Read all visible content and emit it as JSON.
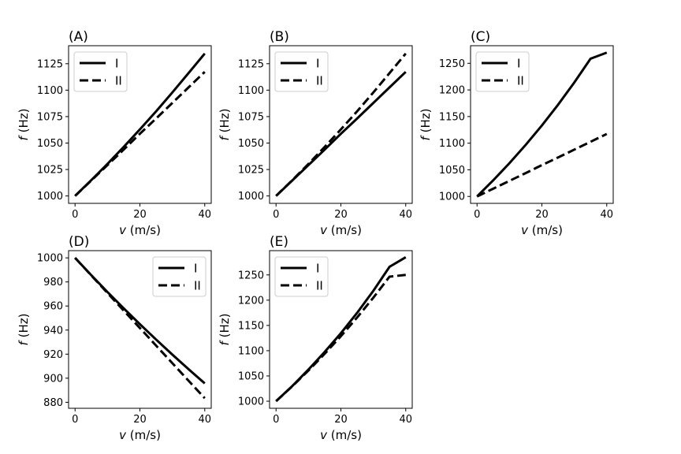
{
  "chart_data": [
    {
      "type": "line",
      "panel_label": "(A)",
      "xlabel_var": "v",
      "xlabel_unit": " (m/s)",
      "ylabel_var": "f",
      "ylabel_unit": " (Hz)",
      "xlim": [
        -2,
        42
      ],
      "ylim": [
        993,
        1142
      ],
      "xticks": [
        0,
        20,
        40
      ],
      "yticks": [
        1000,
        1025,
        1050,
        1075,
        1100,
        1125
      ],
      "legend_position": "top-left",
      "series": [
        {
          "name": "I",
          "style": "solid",
          "x": [
            0,
            5,
            10,
            15,
            20,
            25,
            30,
            35,
            40
          ],
          "y": [
            1000,
            1014.9,
            1030.3,
            1046.3,
            1062.9,
            1080.0,
            1097.8,
            1116.1,
            1134.6
          ]
        },
        {
          "name": "II",
          "style": "dashed",
          "x": [
            0,
            5,
            10,
            15,
            20,
            25,
            30,
            35,
            40
          ],
          "y": [
            1000,
            1014.6,
            1029.2,
            1043.8,
            1058.8,
            1073.2,
            1087.9,
            1102.6,
            1117.3
          ]
        }
      ]
    },
    {
      "type": "line",
      "panel_label": "(B)",
      "xlabel_var": "v",
      "xlabel_unit": " (m/s)",
      "ylabel_var": "f",
      "ylabel_unit": " (Hz)",
      "xlim": [
        -2,
        42
      ],
      "ylim": [
        993,
        1142
      ],
      "xticks": [
        0,
        20,
        40
      ],
      "yticks": [
        1000,
        1025,
        1050,
        1075,
        1100,
        1125
      ],
      "legend_position": "top-left",
      "series": [
        {
          "name": "I",
          "style": "solid",
          "x": [
            0,
            5,
            10,
            15,
            20,
            25,
            30,
            35,
            40
          ],
          "y": [
            1000,
            1014.6,
            1029.2,
            1043.8,
            1058.8,
            1073.2,
            1087.9,
            1102.6,
            1117.3
          ]
        },
        {
          "name": "II",
          "style": "dashed",
          "x": [
            0,
            5,
            10,
            15,
            20,
            25,
            30,
            35,
            40
          ],
          "y": [
            1000,
            1014.9,
            1030.3,
            1046.3,
            1062.9,
            1080.0,
            1097.8,
            1116.1,
            1134.6
          ]
        }
      ]
    },
    {
      "type": "line",
      "panel_label": "(C)",
      "xlabel_var": "v",
      "xlabel_unit": " (m/s)",
      "ylabel_var": "f",
      "ylabel_unit": " (Hz)",
      "xlim": [
        -2,
        42
      ],
      "ylim": [
        987,
        1283
      ],
      "xticks": [
        0,
        20,
        40
      ],
      "yticks": [
        1000,
        1050,
        1100,
        1150,
        1200,
        1250
      ],
      "legend_position": "top-left",
      "series": [
        {
          "name": "I",
          "style": "solid",
          "x": [
            0,
            5,
            10,
            15,
            20,
            25,
            30,
            35,
            40
          ],
          "y": [
            1000,
            1030.3,
            1062.5,
            1096.8,
            1133.3,
            1172.3,
            1214.0,
            1258.6,
            1270.0
          ]
        },
        {
          "name": "II",
          "style": "dashed",
          "x": [
            0,
            5,
            10,
            15,
            20,
            25,
            30,
            35,
            40
          ],
          "y": [
            1000,
            1014.6,
            1029.2,
            1043.8,
            1058.8,
            1073.2,
            1087.9,
            1102.6,
            1117.3
          ]
        }
      ]
    },
    {
      "type": "line",
      "panel_label": "(D)",
      "xlabel_var": "v",
      "xlabel_unit": " (m/s)",
      "ylabel_var": "f",
      "ylabel_unit": " (Hz)",
      "xlim": [
        -2,
        42
      ],
      "ylim": [
        875,
        1006
      ],
      "xticks": [
        0,
        20,
        40
      ],
      "yticks": [
        880,
        900,
        920,
        940,
        960,
        980,
        1000
      ],
      "legend_position": "top-right",
      "series": [
        {
          "name": "I",
          "style": "solid",
          "x": [
            0,
            5,
            10,
            15,
            20,
            25,
            30,
            35,
            40
          ],
          "y": [
            1000,
            985.6,
            971.6,
            958.1,
            944.9,
            932.1,
            919.6,
            907.5,
            895.7
          ]
        },
        {
          "name": "II",
          "style": "dashed",
          "x": [
            0,
            5,
            10,
            15,
            20,
            25,
            30,
            35,
            40
          ],
          "y": [
            1000,
            985.4,
            970.8,
            956.2,
            941.7,
            927.1,
            912.5,
            897.9,
            883.4
          ]
        }
      ]
    },
    {
      "type": "line",
      "panel_label": "(E)",
      "xlabel_var": "v",
      "xlabel_unit": " (m/s)",
      "ylabel_var": "f",
      "ylabel_unit": " (Hz)",
      "xlim": [
        -2,
        42
      ],
      "ylim": [
        986,
        1298
      ],
      "xticks": [
        0,
        20,
        40
      ],
      "yticks": [
        1000,
        1050,
        1100,
        1150,
        1200,
        1250
      ],
      "legend_position": "top-left",
      "series": [
        {
          "name": "I",
          "style": "solid",
          "x": [
            0,
            5,
            10,
            15,
            20,
            25,
            30,
            35,
            40
          ],
          "y": [
            1000,
            1029.9,
            1062.7,
            1097.5,
            1134.6,
            1174.8,
            1218.5,
            1266.0,
            1285.0
          ]
        },
        {
          "name": "II",
          "style": "dashed",
          "x": [
            0,
            5,
            10,
            15,
            20,
            25,
            30,
            35,
            40
          ],
          "y": [
            1000,
            1029.5,
            1060.8,
            1093.8,
            1128.7,
            1165.7,
            1204.9,
            1246.5,
            1250.0
          ]
        }
      ]
    }
  ]
}
